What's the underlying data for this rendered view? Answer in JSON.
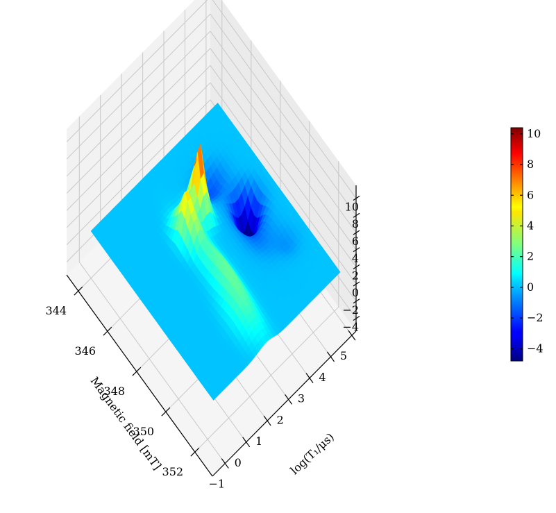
{
  "chart_data": {
    "type": "surface3d",
    "title": "",
    "xlabel": "log(T₁/μs)",
    "ylabel": "Magnetic field [mT]",
    "zlabel": "",
    "x_ticks": [
      "−1",
      "0",
      "1",
      "2",
      "3",
      "4",
      "5"
    ],
    "y_ticks": [
      "344",
      "346",
      "348",
      "350",
      "352"
    ],
    "z_ticks": [
      "−4",
      "−2",
      "0",
      "2",
      "4",
      "6",
      "8",
      "10"
    ],
    "xlim": [
      -1.6,
      5.2
    ],
    "ylim": [
      343.2,
      353.2
    ],
    "zlim": [
      -5.5,
      11.5
    ],
    "colormap": "jet",
    "colorbar": {
      "vmin": -4.8,
      "vmax": 10.4,
      "ticks": [
        "−4",
        "−2",
        "0",
        "2",
        "4",
        "6",
        "8",
        "10"
      ]
    },
    "surface_features": [
      {
        "kind": "ridge",
        "x_range": [
          1.0,
          3.2
        ],
        "y_range": [
          346.5,
          352.2
        ],
        "z_min": 2,
        "z_max": 7.5
      },
      {
        "kind": "peak",
        "x": 1.5,
        "y": 347.0,
        "z": 7.5
      },
      {
        "kind": "peak",
        "x": 2.3,
        "y": 346.5,
        "z": 10.4
      },
      {
        "kind": "valley",
        "x": 3.9,
        "y": 347.6,
        "z": -4.8
      }
    ],
    "baseline_z": 0
  }
}
